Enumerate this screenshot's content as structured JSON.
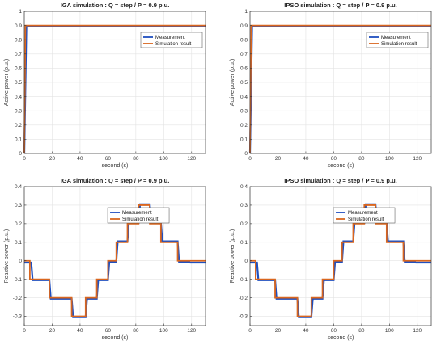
{
  "chart_data": [
    {
      "type": "line",
      "title": "IGA simulation : Q = step / P = 0.9 p.u.",
      "xlabel": "second (s)",
      "ylabel": "Active power (p.u.)",
      "xlim": [
        0,
        130
      ],
      "ylim": [
        0,
        1
      ],
      "xticks": [
        0,
        20,
        40,
        60,
        80,
        100,
        120
      ],
      "yticks": [
        0,
        0.1,
        0.2,
        0.3,
        0.4,
        0.5,
        0.6,
        0.7,
        0.8,
        0.9,
        1
      ],
      "tick_labels_y": [
        "0",
        "0.1",
        "0.2",
        "0.3",
        "0.4",
        "0.5",
        "0.6",
        "0.7",
        "0.8",
        "0.9",
        "1"
      ],
      "grid": true,
      "legend_position": "top-right",
      "series": [
        {
          "name": "Measurement",
          "color": "#1f4fbf",
          "x": [
            0,
            1.5,
            130
          ],
          "y": [
            0,
            0.895,
            0.895
          ]
        },
        {
          "name": "Simulation result",
          "color": "#d9661f",
          "x": [
            0,
            0.8,
            130
          ],
          "y": [
            0,
            0.9,
            0.9
          ]
        }
      ]
    },
    {
      "type": "line",
      "title": "IPSO simulation : Q = step / P = 0.9 p.u.",
      "xlabel": "second (s)",
      "ylabel": "Active power (p.u.)",
      "xlim": [
        0,
        130
      ],
      "ylim": [
        0,
        1
      ],
      "xticks": [
        0,
        20,
        40,
        60,
        80,
        100,
        120
      ],
      "yticks": [
        0,
        0.1,
        0.2,
        0.3,
        0.4,
        0.5,
        0.6,
        0.7,
        0.8,
        0.9,
        1
      ],
      "tick_labels_y": [
        "0",
        "0.1",
        "0.2",
        "0.3",
        "0.4",
        "0.5",
        "0.6",
        "0.7",
        "0.8",
        "0.9",
        "1"
      ],
      "grid": true,
      "legend_position": "top-right",
      "series": [
        {
          "name": "Measurement",
          "color": "#1f4fbf",
          "x": [
            0,
            1.5,
            130
          ],
          "y": [
            0,
            0.895,
            0.895
          ]
        },
        {
          "name": "Simulation result",
          "color": "#d9661f",
          "x": [
            0,
            0.8,
            130
          ],
          "y": [
            0,
            0.9,
            0.9
          ]
        }
      ]
    },
    {
      "type": "line",
      "title": "IGA simulation : Q = step / P = 0.9 p.u.",
      "xlabel": "second (s)",
      "ylabel": "Reactive power (p.u.)",
      "xlim": [
        0,
        130
      ],
      "ylim": [
        -0.35,
        0.4
      ],
      "xticks": [
        0,
        20,
        40,
        60,
        80,
        100,
        120
      ],
      "yticks": [
        -0.3,
        -0.2,
        -0.1,
        0,
        0.1,
        0.2,
        0.3,
        0.4
      ],
      "tick_labels_y": [
        "-0.3",
        "-0.2",
        "-0.1",
        "0",
        "0.1",
        "0.2",
        "0.3",
        "0.4"
      ],
      "grid": true,
      "legend_position": "top-left",
      "series": [
        {
          "name": "Measurement",
          "color": "#1f4fbf",
          "x": [
            0,
            5,
            6,
            12,
            13,
            18,
            19,
            26,
            27,
            34,
            35,
            44,
            45,
            52,
            53,
            60,
            61,
            66,
            67,
            74,
            75,
            82,
            83,
            90,
            91,
            98,
            99,
            104,
            105,
            110,
            111,
            118,
            119,
            130
          ],
          "y": [
            -0.01,
            -0.01,
            -0.105,
            -0.105,
            -0.105,
            -0.105,
            -0.205,
            -0.205,
            -0.205,
            -0.205,
            -0.305,
            -0.305,
            -0.205,
            -0.205,
            -0.105,
            -0.105,
            -0.005,
            -0.005,
            0.105,
            0.105,
            0.205,
            0.205,
            0.305,
            0.305,
            0.205,
            0.205,
            0.105,
            0.105,
            0.105,
            0.105,
            -0.005,
            -0.005,
            -0.01,
            -0.01
          ]
        },
        {
          "name": "Simulation result",
          "color": "#d9661f",
          "x": [
            0,
            4,
            4,
            12,
            12,
            18,
            18,
            26,
            26,
            34,
            34,
            44,
            44,
            52,
            52,
            60,
            60,
            66,
            66,
            74,
            74,
            82,
            82,
            90,
            90,
            98,
            98,
            104,
            104,
            110,
            110,
            118,
            118,
            130
          ],
          "y": [
            0,
            0,
            -0.1,
            -0.1,
            -0.1,
            -0.1,
            -0.2,
            -0.2,
            -0.2,
            -0.2,
            -0.3,
            -0.3,
            -0.2,
            -0.2,
            -0.1,
            -0.1,
            0,
            0,
            0.1,
            0.1,
            0.2,
            0.2,
            0.3,
            0.3,
            0.2,
            0.2,
            0.1,
            0.1,
            0.1,
            0.1,
            0,
            0,
            0,
            0
          ]
        }
      ]
    },
    {
      "type": "line",
      "title": "IPSO simulation : Q = step / P = 0.9 p.u.",
      "xlabel": "second (s)",
      "ylabel": "Reactive power (p.u.)",
      "xlim": [
        0,
        130
      ],
      "ylim": [
        -0.35,
        0.4
      ],
      "xticks": [
        0,
        20,
        40,
        60,
        80,
        100,
        120
      ],
      "yticks": [
        -0.3,
        -0.2,
        -0.1,
        0,
        0.1,
        0.2,
        0.3,
        0.4
      ],
      "tick_labels_y": [
        "-0.3",
        "-0.2",
        "-0.1",
        "0",
        "0.1",
        "0.2",
        "0.3",
        "0.4"
      ],
      "grid": true,
      "legend_position": "top-left",
      "series": [
        {
          "name": "Measurement",
          "color": "#1f4fbf",
          "x": [
            0,
            5,
            6,
            12,
            13,
            18,
            19,
            26,
            27,
            34,
            35,
            44,
            45,
            52,
            53,
            60,
            61,
            66,
            67,
            74,
            75,
            82,
            83,
            90,
            91,
            98,
            99,
            104,
            105,
            110,
            111,
            118,
            119,
            130
          ],
          "y": [
            -0.01,
            -0.01,
            -0.105,
            -0.105,
            -0.105,
            -0.105,
            -0.205,
            -0.205,
            -0.205,
            -0.205,
            -0.305,
            -0.305,
            -0.205,
            -0.205,
            -0.105,
            -0.105,
            -0.005,
            -0.005,
            0.105,
            0.105,
            0.205,
            0.205,
            0.305,
            0.305,
            0.205,
            0.205,
            0.105,
            0.105,
            0.105,
            0.105,
            -0.005,
            -0.005,
            -0.01,
            -0.01
          ]
        },
        {
          "name": "Simulation result",
          "color": "#d9661f",
          "x": [
            0,
            4,
            4,
            12,
            12,
            18,
            18,
            26,
            26,
            34,
            34,
            44,
            44,
            52,
            52,
            60,
            60,
            66,
            66,
            74,
            74,
            82,
            82,
            90,
            90,
            98,
            98,
            104,
            104,
            110,
            110,
            118,
            118,
            130
          ],
          "y": [
            0,
            0,
            -0.1,
            -0.1,
            -0.1,
            -0.1,
            -0.2,
            -0.2,
            -0.2,
            -0.2,
            -0.3,
            -0.3,
            -0.2,
            -0.2,
            -0.1,
            -0.1,
            0,
            0,
            0.1,
            0.1,
            0.2,
            0.2,
            0.3,
            0.3,
            0.2,
            0.2,
            0.1,
            0.1,
            0.1,
            0.1,
            0,
            0,
            0,
            0
          ]
        }
      ]
    }
  ]
}
